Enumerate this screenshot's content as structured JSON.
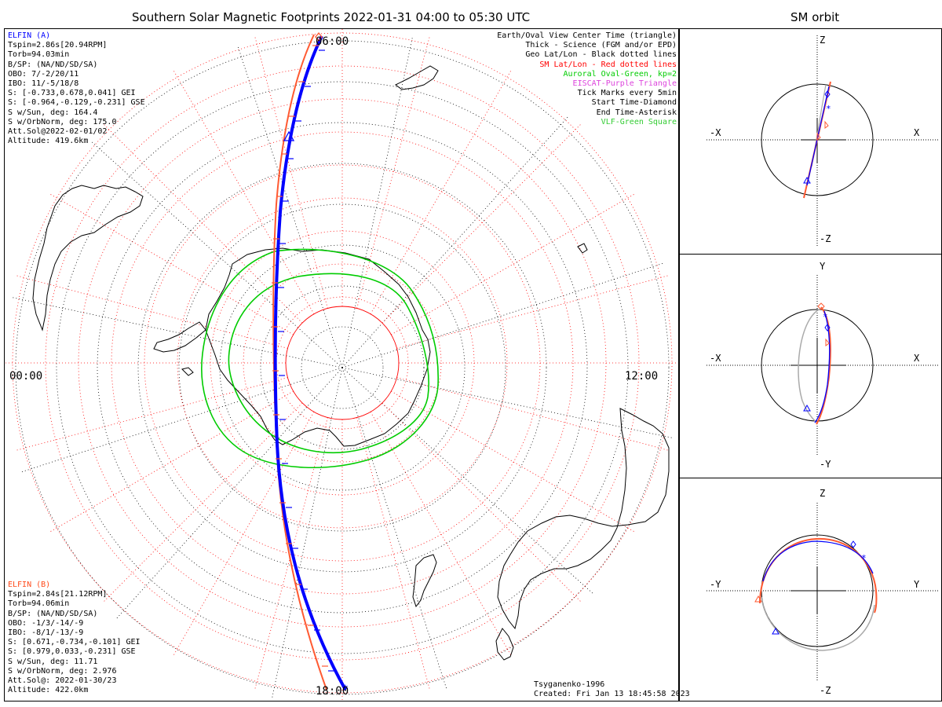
{
  "main_title": "Southern Solar Magnetic Footprints 2022-01-31 04:00 to 05:30 UTC",
  "orbit_title": "SM orbit",
  "time_labels": {
    "top": "06:00",
    "left": "00:00",
    "right": "12:00",
    "bottom": "18:00"
  },
  "elfin_a": {
    "name": "ELFIN (A)",
    "color": "#0000ff",
    "lines": [
      "Tspin=2.86s[20.94RPM]",
      "Torb=94.03min",
      "B/SP: (NA/ND/SD/SA)",
      "OBO: 7/-2/20/11",
      "IBO: 11/-5/18/8",
      "S: [-0.733,0.678,0.041] GEI",
      "S: [-0.964,-0.129,-0.231] GSE",
      "S w/Sun, deg: 164.4",
      "S w/OrbNorm, deg: 175.0",
      "Att.Sol@2022-02-01/02",
      "Altitude: 419.6km"
    ]
  },
  "elfin_b": {
    "name": "ELFIN (B)",
    "color": "#ff4a1a",
    "lines": [
      "Tspin=2.84s[21.12RPM]",
      "Torb=94.06min",
      "B/SP: (NA/ND/SD/SA)",
      "OBO: -1/3/-14/-9",
      "IBO: -8/1/-13/-9",
      "S: [0.671,-0.734,-0.101] GEI",
      "S: [0.979,0.033,-0.231] GSE",
      "S w/Sun, deg: 11.71",
      "S w/OrbNorm, deg: 2.976",
      "Att.Sol@: 2022-01-30/23",
      "Altitude: 422.0km"
    ]
  },
  "legend": [
    {
      "text": "Earth/Oval View Center Time (triangle)",
      "color": "#000000"
    },
    {
      "text": "Thick - Science (FGM and/or EPD)",
      "color": "#000000"
    },
    {
      "text": "Geo Lat/Lon - Black dotted lines",
      "color": "#000000"
    },
    {
      "text": "SM Lat/Lon - Red dotted lines",
      "color": "#ff0000"
    },
    {
      "text": "Auroral Oval-Green, kp=2",
      "color": "#00cc00"
    },
    {
      "text": "EISCAT-Purple Triangle",
      "color": "#dd44dd"
    },
    {
      "text": "Tick Marks every 5min",
      "color": "#000000"
    },
    {
      "text": "Start Time-Diamond",
      "color": "#000000"
    },
    {
      "text": "End Time-Asterisk",
      "color": "#000000"
    },
    {
      "text": "VLF-Green Square",
      "color": "#33cc33"
    }
  ],
  "footer": {
    "model": "Tsyganenko-1996",
    "created": "Created: Fri Jan 13 18:45:58 2023"
  },
  "orbit_panels": [
    {
      "up": "Z",
      "down": "-Z",
      "left": "-X",
      "right": "X"
    },
    {
      "up": "Y",
      "down": "-Y",
      "left": "-X",
      "right": "X"
    },
    {
      "up": "Z",
      "down": "-Z",
      "left": "-Y",
      "right": "Y"
    }
  ],
  "colors": {
    "elfin_a_track": "#0000ff",
    "elfin_b_track": "#ff5a32",
    "sm_grid": "#ff0000",
    "auroral_oval": "#00cc00",
    "geo_grid": "#000000"
  }
}
